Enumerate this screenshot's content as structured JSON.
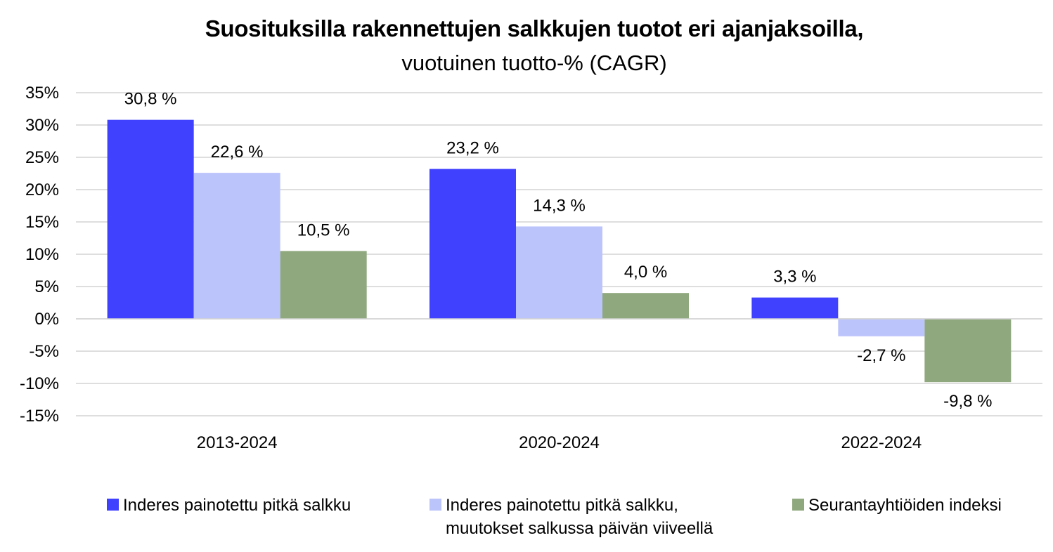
{
  "chart_data": {
    "type": "bar",
    "title": "Suosituksilla rakennettujen salkkujen tuotot eri ajanjaksoilla,",
    "subtitle": "vuotuinen tuotto-% (CAGR)",
    "xlabel": "",
    "ylabel": "",
    "categories": [
      "2013-2024",
      "2020-2024",
      "2022-2024"
    ],
    "ylim": [
      -15,
      35
    ],
    "yticks": [
      35,
      30,
      25,
      20,
      15,
      10,
      5,
      0,
      -5,
      -10,
      -15
    ],
    "ytick_labels": [
      "35%",
      "30%",
      "25%",
      "20%",
      "15%",
      "10%",
      "5%",
      "0%",
      "-5%",
      "-10%",
      "-15%"
    ],
    "grid": true,
    "legend_position": "bottom",
    "series": [
      {
        "name": "Inderes painotettu pitkä salkku",
        "color": "#4040ff",
        "values": [
          30.8,
          23.2,
          3.3
        ],
        "labels": [
          "30,8 %",
          "23,2 %",
          "3,3 %"
        ]
      },
      {
        "name": "Inderes painotettu pitkä salkku, muutokset salkussa päivän viiveellä",
        "name_lines": [
          "Inderes painotettu pitkä salkku,",
          "muutokset salkussa päivän viiveellä"
        ],
        "color": "#bcc4fc",
        "values": [
          22.6,
          14.3,
          -2.7
        ],
        "labels": [
          "22,6 %",
          "14,3 %",
          "-2,7 %"
        ]
      },
      {
        "name": "Seurantayhtiöiden indeksi",
        "color": "#8fa87e",
        "values": [
          10.5,
          4.0,
          -9.8
        ],
        "labels": [
          "10,5 %",
          "4,0 %",
          "-9,8 %"
        ]
      }
    ]
  }
}
